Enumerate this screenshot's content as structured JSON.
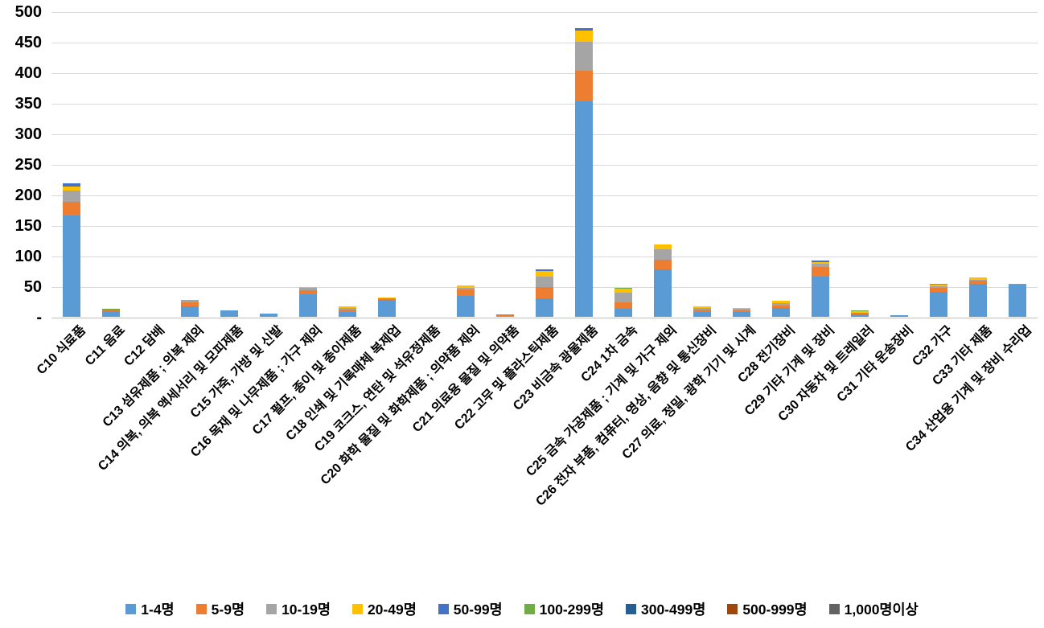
{
  "chart_data": {
    "type": "bar",
    "stacked": true,
    "title": "",
    "xlabel": "",
    "ylabel": "",
    "ylim": [
      0,
      500
    ],
    "ytick_step": 50,
    "ytick_labels": [
      "-",
      "50",
      "100",
      "150",
      "200",
      "250",
      "300",
      "350",
      "400",
      "450",
      "500"
    ],
    "grid": true,
    "legend_position": "bottom",
    "categories": [
      "C10 식료품",
      "C11 음료",
      "C12 담배",
      "C13 섬유제품 ; 의복 제외",
      "C14 의복, 의복 액세서리 및 모피제품",
      "C15 가죽, 가방 및 신발",
      "C16 목재 및 나무제품 ; 가구 제외",
      "C17 펄프, 종이 및 종이제품",
      "C18 인쇄 및 기록매체 복제업",
      "C19 코크스, 연탄 및 석유정제품",
      "C20 화학 물질 및 화학제품 ; 의약품 제외",
      "C21 의료용 물질 및 의약품",
      "C22 고무 및 플라스틱제품",
      "C23 비금속 광물제품",
      "C24 1차 금속",
      "C25 금속 가공제품 ; 기계 및 가구 제외",
      "C26 전자 부품, 컴퓨터, 영상, 음향 및 통신장비",
      "C27 의료, 정밀, 광학 기기 및 시계",
      "C28 전기장비",
      "C29 기타 기계 및 장비",
      "C30 자동차 및 트레일러",
      "C31 기타 운송장비",
      "C32 가구",
      "C33 기타 제품",
      "C34 산업용 기계 및 장비 수리업"
    ],
    "series": [
      {
        "name": "1-4명",
        "color": "#5B9BD5",
        "values": [
          166,
          9,
          0,
          17,
          10,
          5,
          37,
          8,
          28,
          0,
          34,
          0,
          30,
          352,
          13,
          78,
          8,
          8,
          14,
          66,
          4,
          2,
          41,
          54,
          52
        ]
      },
      {
        "name": "5-9명",
        "color": "#ED7D31",
        "values": [
          22,
          2,
          0,
          7,
          0,
          0,
          7,
          4,
          2,
          0,
          11,
          2,
          19,
          50,
          11,
          15,
          4,
          3,
          5,
          15,
          2,
          0,
          7,
          5,
          2
        ]
      },
      {
        "name": "10-19명",
        "color": "#A5A5A5",
        "values": [
          18,
          0,
          0,
          4,
          0,
          0,
          3,
          3,
          0,
          0,
          3,
          0,
          17,
          48,
          16,
          18,
          2,
          2,
          3,
          6,
          1,
          0,
          2,
          2,
          0
        ]
      },
      {
        "name": "20-49명",
        "color": "#FFC000",
        "values": [
          7,
          0,
          0,
          0,
          0,
          0,
          2,
          2,
          2,
          0,
          3,
          0,
          9,
          19,
          6,
          8,
          3,
          2,
          4,
          3,
          2,
          0,
          2,
          3,
          0
        ]
      },
      {
        "name": "50-99명",
        "color": "#4472C4",
        "values": [
          5,
          0,
          0,
          0,
          0,
          0,
          0,
          0,
          0,
          0,
          0,
          0,
          3,
          3,
          0,
          0,
          0,
          0,
          0,
          2,
          0,
          0,
          0,
          0,
          0
        ]
      },
      {
        "name": "100-299명",
        "color": "#70AD47",
        "values": [
          0,
          2,
          0,
          0,
          0,
          0,
          0,
          0,
          0,
          0,
          0,
          1,
          0,
          0,
          2,
          0,
          0,
          0,
          0,
          0,
          1,
          0,
          1,
          0,
          0
        ]
      },
      {
        "name": "300-499명",
        "color": "#255E91",
        "values": [
          0,
          0,
          0,
          0,
          0,
          0,
          0,
          0,
          0,
          0,
          0,
          0,
          0,
          0,
          0,
          0,
          0,
          0,
          0,
          0,
          0,
          0,
          0,
          0,
          0
        ]
      },
      {
        "name": "500-999명",
        "color": "#9E480E",
        "values": [
          0,
          0,
          0,
          0,
          0,
          0,
          0,
          0,
          0,
          0,
          0,
          0,
          0,
          0,
          0,
          0,
          0,
          0,
          0,
          0,
          0,
          0,
          0,
          0,
          0
        ]
      },
      {
        "name": "1,000명이상",
        "color": "#636363",
        "values": [
          0,
          0,
          0,
          0,
          0,
          0,
          0,
          0,
          0,
          0,
          0,
          0,
          0,
          0,
          0,
          0,
          0,
          0,
          0,
          0,
          0,
          0,
          0,
          0,
          0
        ]
      }
    ],
    "colors": {
      "gridline": "#D9D9D9",
      "axis_line": "#BFBFBF",
      "text": "#000000",
      "background": "#FFFFFF"
    }
  }
}
